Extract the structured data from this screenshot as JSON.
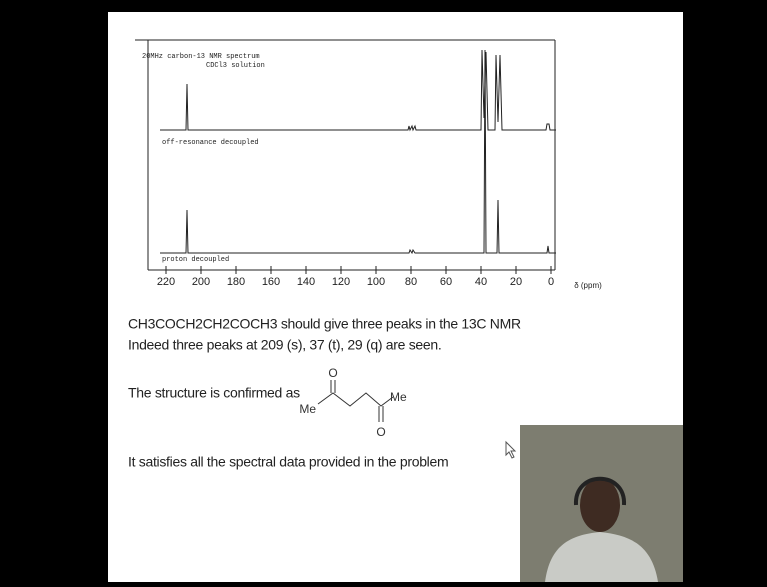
{
  "spectrum": {
    "title_line1": "20MHz carbon-13 NMR spectrum",
    "title_line2": "CDCl3 solution",
    "upper_label": "off-resonance decoupled",
    "lower_label": "proton decoupled",
    "axis_labels": [
      "220",
      "200",
      "180",
      "160",
      "140",
      "120",
      "100",
      "80",
      "60",
      "40",
      "20",
      "0"
    ],
    "axis_unit": "δ (ppm)"
  },
  "text": {
    "line1": "CH3COCH2CH2COCH3 should give three peaks in the 13C NMR",
    "line2": "Indeed three peaks at 209 (s), 37 (t), 29 (q) are seen.",
    "structure_intro": "The structure is confirmed as",
    "conclusion": "It satisfies all the spectral data provided in the problem"
  },
  "structure": {
    "oxygen1": "O",
    "oxygen2": "O",
    "methyl1": "Me",
    "methyl2": "Me"
  }
}
